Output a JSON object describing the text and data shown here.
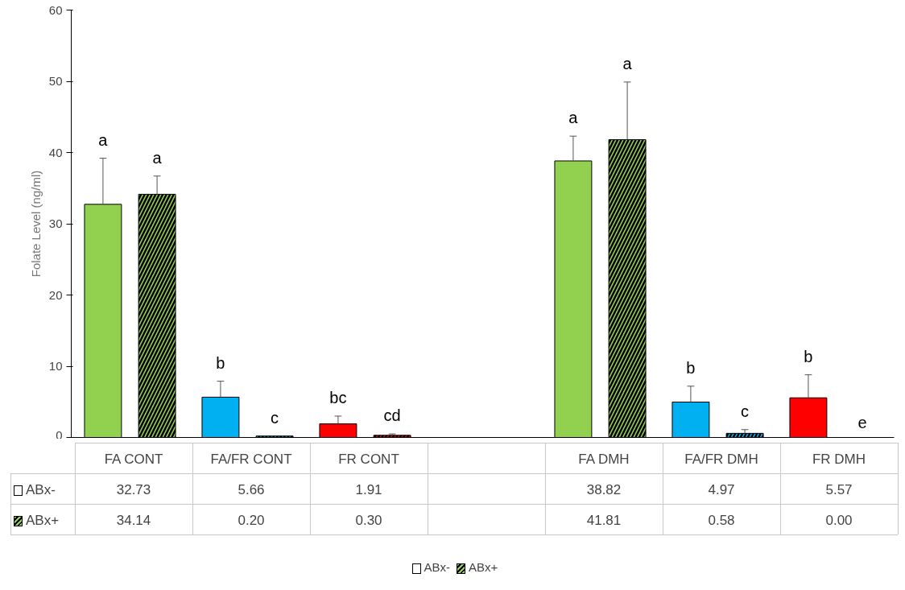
{
  "chart_data": {
    "type": "bar",
    "ylabel": "Folate Level (ng/ml)",
    "categories": [
      "FA CONT",
      "FA/FR CONT",
      "FR CONT",
      null,
      "FA DMH",
      "FA/FR DMH",
      "FR DMH"
    ],
    "series": [
      {
        "name": "ABx-",
        "colors": [
          "#92d050",
          "#00b0f0",
          "#ff0000",
          null,
          "#92d050",
          "#00b0f0",
          "#ff0000"
        ],
        "values": [
          32.73,
          5.66,
          1.91,
          null,
          38.82,
          4.97,
          5.57
        ],
        "value_labels": [
          "32.73",
          "5.66",
          "1.91",
          null,
          "38.82",
          "4.97",
          "5.57"
        ],
        "errors": [
          [
            32.73,
            39.2
          ],
          [
            5.66,
            7.9
          ],
          [
            1.91,
            3.0
          ],
          null,
          [
            38.82,
            42.3
          ],
          [
            4.97,
            7.2
          ],
          [
            5.57,
            8.8
          ]
        ]
      },
      {
        "name": "ABx+",
        "colors": [
          "#92d050",
          "#00b0f0",
          "#ff0000",
          null,
          "#92d050",
          "#00b0f0",
          "#ff0000"
        ],
        "values": [
          34.14,
          0.2,
          0.3,
          null,
          41.81,
          0.58,
          0.0
        ],
        "value_labels": [
          "34.14",
          "0.20",
          "0.30",
          null,
          "41.81",
          "0.58",
          "0.00"
        ],
        "errors": [
          [
            34.14,
            36.7
          ],
          null,
          [
            0.3,
            0.5
          ],
          null,
          [
            41.81,
            49.9
          ],
          [
            0.58,
            1.1
          ],
          null
        ]
      }
    ],
    "ylim": [
      0,
      60
    ],
    "yticks": [
      0,
      10,
      20,
      30,
      40,
      50,
      60
    ],
    "legend": "bottom",
    "annotations": [
      "a",
      "a",
      "b",
      "c",
      "bc",
      "cd",
      "a",
      "a",
      "b",
      "c",
      "b",
      "e"
    ]
  }
}
